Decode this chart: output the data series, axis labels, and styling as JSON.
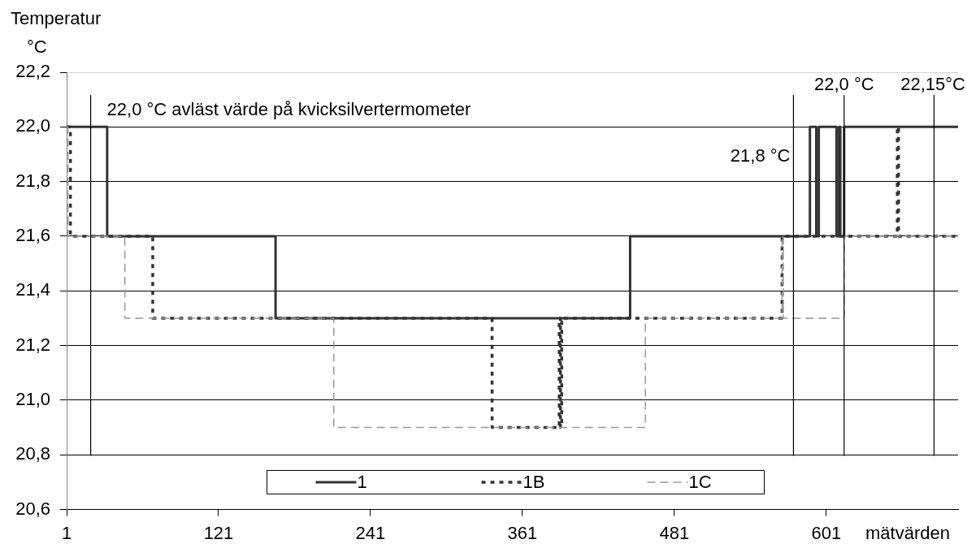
{
  "chart_data": {
    "type": "step",
    "xlabel": "mätvärden",
    "ylabel": "Temperatur °C",
    "xlim": [
      1,
      705
    ],
    "xticks": [
      1,
      121,
      241,
      361,
      481,
      601
    ],
    "ylim": [
      20.6,
      22.2
    ],
    "yticks": [
      {
        "value": 20.6,
        "label": "20,6"
      },
      {
        "value": 20.8,
        "label": "20,8"
      },
      {
        "value": 21.0,
        "label": "21,0"
      },
      {
        "value": 21.2,
        "label": "21,2"
      },
      {
        "value": 21.4,
        "label": "21,4"
      },
      {
        "value": 21.6,
        "label": "21,6"
      },
      {
        "value": 21.8,
        "label": "21,8"
      },
      {
        "value": 22.0,
        "label": "22,0"
      },
      {
        "value": 22.2,
        "label": "22,2"
      }
    ],
    "grid": "y",
    "legend": "bottom",
    "series": [
      {
        "name": "1",
        "color": "#333333",
        "line_style": "solid",
        "x": [
          1,
          33,
          166,
          446,
          588,
          593,
          595,
          609,
          611,
          612,
          615,
          705
        ],
        "values": [
          22.0,
          21.6,
          21.3,
          21.6,
          22.0,
          21.6,
          22.0,
          21.6,
          22.0,
          21.6,
          22.0,
          22.0
        ]
      },
      {
        "name": "1B",
        "color": "#333333",
        "line_style": "dotted",
        "x": [
          1,
          4,
          69,
          337,
          390,
          391,
          392,
          566,
          657,
          658,
          705
        ],
        "values": [
          22.0,
          21.6,
          21.3,
          20.9,
          21.3,
          20.9,
          21.3,
          21.6,
          22.0,
          21.6,
          21.6
        ]
      },
      {
        "name": "1C",
        "color": "#999999",
        "line_style": "dashed",
        "x": [
          1,
          2,
          47,
          212,
          458,
          566,
          567,
          615,
          705
        ],
        "values": [
          22.0,
          21.6,
          21.3,
          20.9,
          21.3,
          21.6,
          21.3,
          21.6,
          21.6
        ]
      }
    ],
    "ref_lines": [
      {
        "axis": "x",
        "value": 20,
        "color": "#000000",
        "label": "22,0 °C avläst värde på kvicksilvertermometer"
      },
      {
        "axis": "x",
        "value": 575,
        "color": "#000000",
        "label": "21,8 °C"
      },
      {
        "axis": "x",
        "value": 615,
        "color": "#000000",
        "label": "22,0 °C"
      },
      {
        "axis": "x",
        "value": 686,
        "color": "#000000",
        "label": "22,15°C"
      }
    ]
  }
}
